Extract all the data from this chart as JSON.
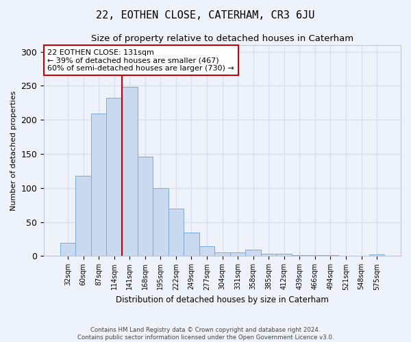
{
  "title": "22, EOTHEN CLOSE, CATERHAM, CR3 6JU",
  "subtitle": "Size of property relative to detached houses in Caterham",
  "xlabel": "Distribution of detached houses by size in Caterham",
  "ylabel": "Number of detached properties",
  "footer_line1": "Contains HM Land Registry data © Crown copyright and database right 2024.",
  "footer_line2": "Contains public sector information licensed under the Open Government Licence v3.0.",
  "categories": [
    "32sqm",
    "60sqm",
    "87sqm",
    "114sqm",
    "141sqm",
    "168sqm",
    "195sqm",
    "222sqm",
    "249sqm",
    "277sqm",
    "304sqm",
    "331sqm",
    "358sqm",
    "385sqm",
    "412sqm",
    "439sqm",
    "466sqm",
    "494sqm",
    "521sqm",
    "548sqm",
    "575sqm"
  ],
  "bar_values": [
    20,
    118,
    209,
    232,
    248,
    146,
    100,
    70,
    35,
    14,
    5,
    5,
    9,
    3,
    3,
    1,
    1,
    1,
    0,
    0,
    2
  ],
  "bar_color": "#c9d9f0",
  "bar_edge_color": "#7aabdc",
  "vline_x_index": 4,
  "vline_color": "#cc0000",
  "annotation_text": "22 EOTHEN CLOSE: 131sqm\n← 39% of detached houses are smaller (467)\n60% of semi-detached houses are larger (730) →",
  "annotation_box_color": "#ffffff",
  "annotation_box_edge": "#cc0000",
  "annotation_fontsize": 8,
  "ylim": [
    0,
    310
  ],
  "bg_color": "#eef2fa",
  "grid_color": "#d8e0ef",
  "title_fontsize": 11,
  "subtitle_fontsize": 9.5
}
